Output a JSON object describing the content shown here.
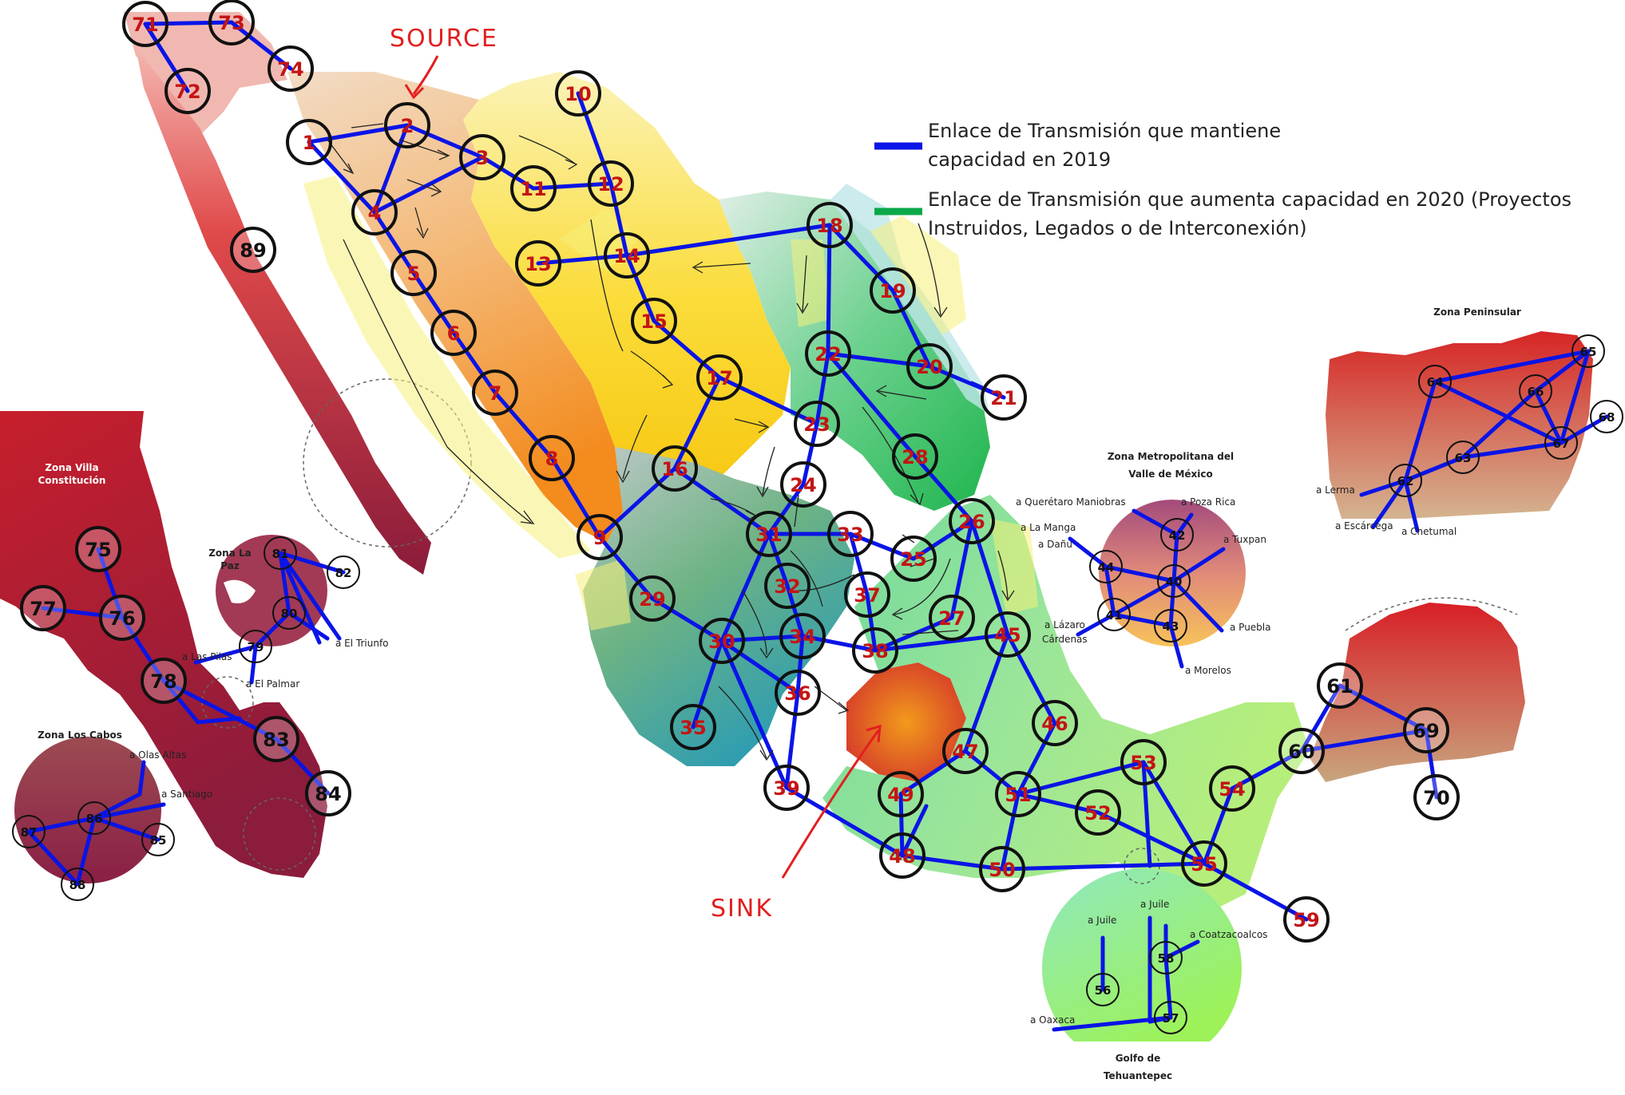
{
  "legend": {
    "blue": {
      "color": "#0a14e6",
      "line1": "Enlace de Transmisión que mantiene",
      "line2": "capacidad en 2019"
    },
    "green": {
      "color": "#0aa84a",
      "line1": "Enlace de Transmisión que aumenta capacidad en 2020 (Proyectos",
      "line2": "Instruidos, Legados o de Interconexión)"
    }
  },
  "annotations": {
    "source": "SOURCE",
    "sink": "SINK"
  },
  "zones": {
    "villa_constitucion": {
      "line1": "Zona Villa",
      "line2": "Constitución"
    },
    "la_paz": {
      "line1": "Zona La",
      "line2": "Paz"
    },
    "los_cabos": "Zona Los Cabos",
    "metropolitana": {
      "line1": "Zona Metropolitana del",
      "line2": "Valle de México"
    },
    "peninsular": "Zona Peninsular",
    "tehuantepec": {
      "line1": "Golfo de",
      "line2": "Tehuantepec"
    }
  },
  "connections": {
    "las_pilas": "a Las Pilas",
    "el_palmar": "a El Palmar",
    "el_triunfo": "a El Triunfo",
    "olas_altas": "a Olas Altas",
    "santiago": "a Santiago",
    "queretaro": "a Querétaro Maniobras",
    "poza_rica": "a Poza Rica",
    "la_manga": "a La Manga",
    "danu": "a Dañu",
    "tuxpan": "a Tuxpan",
    "lazaro1": "a Lázaro",
    "lazaro2": "Cárdenas",
    "puebla": "a Puebla",
    "morelos": "a Morelos",
    "lerma": "a Lerma",
    "escarcega": "a Escárcega",
    "chetumal": "a Chetumal",
    "juile_a": "a Juile",
    "juile_b": "a Juile",
    "coatzacoalcos": "a Coatzacoalcos",
    "oaxaca": "a Oaxaca"
  },
  "nodes": [
    {
      "id": "71",
      "style": "reg"
    },
    {
      "id": "73",
      "style": "reg"
    },
    {
      "id": "72",
      "style": "reg"
    },
    {
      "id": "74",
      "style": "reg"
    },
    {
      "id": "1",
      "style": "reg"
    },
    {
      "id": "2",
      "style": "reg"
    },
    {
      "id": "3",
      "style": "reg"
    },
    {
      "id": "4",
      "style": "reg"
    },
    {
      "id": "5",
      "style": "reg"
    },
    {
      "id": "6",
      "style": "reg"
    },
    {
      "id": "7",
      "style": "reg"
    },
    {
      "id": "8",
      "style": "reg"
    },
    {
      "id": "9",
      "style": "reg"
    },
    {
      "id": "10",
      "style": "reg"
    },
    {
      "id": "11",
      "style": "reg"
    },
    {
      "id": "12",
      "style": "reg"
    },
    {
      "id": "13",
      "style": "reg"
    },
    {
      "id": "14",
      "style": "reg"
    },
    {
      "id": "15",
      "style": "reg"
    },
    {
      "id": "16",
      "style": "reg"
    },
    {
      "id": "17",
      "style": "reg"
    },
    {
      "id": "18",
      "style": "reg"
    },
    {
      "id": "19",
      "style": "reg"
    },
    {
      "id": "20",
      "style": "reg"
    },
    {
      "id": "21",
      "style": "reg"
    },
    {
      "id": "22",
      "style": "reg"
    },
    {
      "id": "23",
      "style": "reg"
    },
    {
      "id": "24",
      "style": "reg"
    },
    {
      "id": "25",
      "style": "reg"
    },
    {
      "id": "26",
      "style": "reg"
    },
    {
      "id": "27",
      "style": "reg"
    },
    {
      "id": "28",
      "style": "reg"
    },
    {
      "id": "29",
      "style": "reg"
    },
    {
      "id": "30",
      "style": "reg"
    },
    {
      "id": "31",
      "style": "reg"
    },
    {
      "id": "32",
      "style": "reg"
    },
    {
      "id": "33",
      "style": "reg"
    },
    {
      "id": "34",
      "style": "reg"
    },
    {
      "id": "35",
      "style": "reg"
    },
    {
      "id": "36",
      "style": "reg"
    },
    {
      "id": "37",
      "style": "reg"
    },
    {
      "id": "38",
      "style": "reg"
    },
    {
      "id": "39",
      "style": "reg"
    },
    {
      "id": "45",
      "style": "reg"
    },
    {
      "id": "46",
      "style": "reg"
    },
    {
      "id": "47",
      "style": "reg"
    },
    {
      "id": "48",
      "style": "reg"
    },
    {
      "id": "49",
      "style": "reg"
    },
    {
      "id": "50",
      "style": "reg"
    },
    {
      "id": "51",
      "style": "reg"
    },
    {
      "id": "52",
      "style": "reg"
    },
    {
      "id": "53",
      "style": "reg"
    },
    {
      "id": "54",
      "style": "reg"
    },
    {
      "id": "55",
      "style": "reg"
    },
    {
      "id": "59",
      "style": "reg"
    },
    {
      "id": "89",
      "style": "dark"
    },
    {
      "id": "60",
      "style": "dark"
    },
    {
      "id": "61",
      "style": "dark"
    },
    {
      "id": "69",
      "style": "dark"
    },
    {
      "id": "70",
      "style": "dark"
    },
    {
      "id": "75",
      "style": "dark"
    },
    {
      "id": "76",
      "style": "dark"
    },
    {
      "id": "77",
      "style": "dark"
    },
    {
      "id": "78",
      "style": "dark"
    },
    {
      "id": "83",
      "style": "dark"
    },
    {
      "id": "84",
      "style": "dark"
    },
    {
      "id": "79",
      "style": "small"
    },
    {
      "id": "80",
      "style": "small"
    },
    {
      "id": "81",
      "style": "small"
    },
    {
      "id": "82",
      "style": "small"
    },
    {
      "id": "85",
      "style": "small"
    },
    {
      "id": "86",
      "style": "small"
    },
    {
      "id": "87",
      "style": "small"
    },
    {
      "id": "88",
      "style": "small"
    },
    {
      "id": "40",
      "style": "small"
    },
    {
      "id": "41",
      "style": "small"
    },
    {
      "id": "42",
      "style": "small"
    },
    {
      "id": "43",
      "style": "small"
    },
    {
      "id": "44",
      "style": "small"
    },
    {
      "id": "62",
      "style": "small"
    },
    {
      "id": "63",
      "style": "small"
    },
    {
      "id": "64",
      "style": "small"
    },
    {
      "id": "65",
      "style": "small"
    },
    {
      "id": "66",
      "style": "small"
    },
    {
      "id": "67",
      "style": "small"
    },
    {
      "id": "68",
      "style": "small"
    },
    {
      "id": "56",
      "style": "small"
    },
    {
      "id": "57",
      "style": "small"
    },
    {
      "id": "58",
      "style": "small"
    }
  ]
}
